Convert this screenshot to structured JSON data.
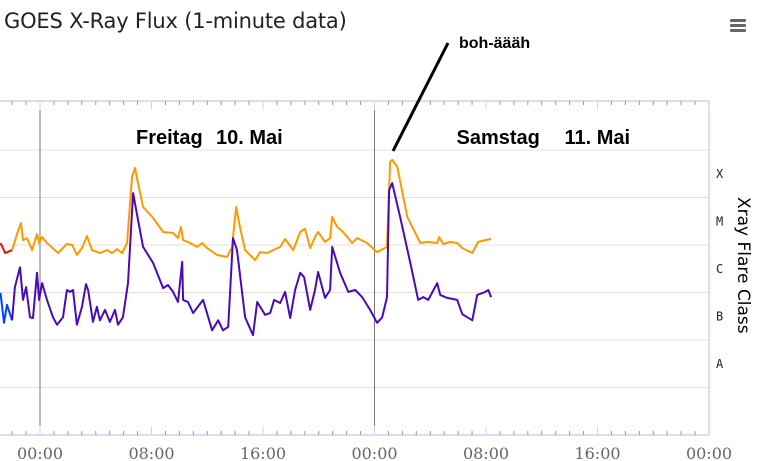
{
  "title": "GOES X-Ray Flux (1-minute data)",
  "menu_icon": "hamburger-icon",
  "chart_data": {
    "type": "line",
    "title": "GOES X-Ray Flux (1-minute data)",
    "xlabel": "",
    "ylabel_right": "Xray Flare Class",
    "y_scale": "log",
    "ylim": [
      1e-09,
      0.01
    ],
    "xlim": [
      "09.05 21:08",
      "12.05 00:00"
    ],
    "grid": true,
    "x_tick_labels": [
      "00:00",
      "08:00",
      "16:00",
      "00:00",
      "08:00",
      "16:00",
      "00:00"
    ],
    "x_ticks": [
      "10.05 00:00",
      "10.05 08:00",
      "10.05 16:00",
      "11.05 00:00",
      "11.05 08:00",
      "11.05 16:00",
      "12.05 00:00"
    ],
    "flare_classes": [
      {
        "label": "X",
        "min": 0.0001
      },
      {
        "label": "M",
        "min": 1e-05
      },
      {
        "label": "C",
        "min": 1e-06
      },
      {
        "label": "B",
        "min": 1e-07
      },
      {
        "label": "A",
        "min": 1e-08
      }
    ],
    "day_labels": [
      {
        "weekday": "Freitag",
        "date": "10. Mai",
        "at": "10.05 00:00"
      },
      {
        "weekday": "Samstag",
        "date": "11. Mai",
        "at": "11.05 00:00"
      }
    ],
    "annotation": {
      "text": "boh-äääh",
      "points_to": "11.05 01:16"
    },
    "series": [
      {
        "color": "#ff0000",
        "points": [
          [
            "09.05 21:10",
            1.1e-05
          ],
          [
            "09.05 21:30",
            6.8e-06
          ],
          [
            "09.05 22:00",
            7.8e-06
          ]
        ]
      },
      {
        "color": "#ff9900",
        "points": [
          [
            "09.05 22:00",
            7.8e-06
          ],
          [
            "09.05 22:21",
            1.7e-05
          ],
          [
            "09.05 22:38",
            2.9e-05
          ],
          [
            "09.05 22:47",
            1.27e-05
          ],
          [
            "09.05 23:04",
            1.4e-05
          ],
          [
            "09.05 23:26",
            7.8e-06
          ],
          [
            "09.05 23:47",
            1.7e-05
          ],
          [
            "09.05 23:56",
            1.1e-05
          ],
          [
            "10.05 00:09",
            1.47e-05
          ],
          [
            "10.05 00:30",
            1.1e-05
          ],
          [
            "10.05 01:18",
            6.8e-06
          ],
          [
            "10.05 01:56",
            1.05e-05
          ],
          [
            "10.05 02:18",
            1e-05
          ],
          [
            "10.05 02:39",
            6.2e-06
          ],
          [
            "10.05 03:01",
            8.6e-06
          ],
          [
            "10.05 03:22",
            1.55e-05
          ],
          [
            "10.05 03:44",
            7.8e-06
          ],
          [
            "10.05 04:18",
            6.8e-06
          ],
          [
            "10.05 04:49",
            7.8e-06
          ],
          [
            "10.05 05:10",
            6.8e-06
          ],
          [
            "10.05 05:32",
            8.2e-06
          ],
          [
            "10.05 05:53",
            6.8e-06
          ],
          [
            "10.05 06:15",
            1.1e-05
          ],
          [
            "10.05 06:36",
            0.00027
          ],
          [
            "10.05 06:49",
            0.00042
          ],
          [
            "10.05 07:02",
            0.0002
          ],
          [
            "10.05 07:24",
            6.3e-05
          ],
          [
            "10.05 08:07",
            3.7e-05
          ],
          [
            "10.05 08:50",
            1.88e-05
          ],
          [
            "10.05 09:33",
            1.79e-05
          ],
          [
            "10.05 09:54",
            1.4e-05
          ],
          [
            "10.05 10:07",
            2.4e-05
          ],
          [
            "10.05 10:16",
            1.27e-05
          ],
          [
            "10.05 10:46",
            1.1e-05
          ],
          [
            "10.05 11:16",
            9.1e-06
          ],
          [
            "10.05 11:38",
            1.1e-05
          ],
          [
            "10.05 11:59",
            8.6e-06
          ],
          [
            "10.05 12:42",
            6.2e-06
          ],
          [
            "10.05 13:25",
            5.6e-06
          ],
          [
            "10.05 13:47",
            9.1e-06
          ],
          [
            "10.05 14:04",
            6.3e-05
          ],
          [
            "10.05 14:17",
            2.9e-05
          ],
          [
            "10.05 14:43",
            7.8e-06
          ],
          [
            "10.05 15:26",
            4.8e-06
          ],
          [
            "10.05 15:48",
            7.1e-06
          ],
          [
            "10.05 16:18",
            6.8e-06
          ],
          [
            "10.05 16:44",
            7.8e-06
          ],
          [
            "10.05 17:14",
            9.1e-06
          ],
          [
            "10.05 17:35",
            1.34e-05
          ],
          [
            "10.05 18:10",
            7.8e-06
          ],
          [
            "10.05 18:40",
            1.88e-05
          ],
          [
            "10.05 19:01",
            2.2e-05
          ],
          [
            "10.05 19:23",
            8.6e-06
          ],
          [
            "10.05 19:44",
            1.47e-05
          ],
          [
            "10.05 19:57",
            1.88e-05
          ],
          [
            "10.05 20:27",
            1.16e-05
          ],
          [
            "10.05 20:49",
            1.4e-05
          ],
          [
            "10.05 20:58",
            3.9e-05
          ],
          [
            "10.05 21:19",
            2.4e-05
          ],
          [
            "10.05 21:45",
            1.88e-05
          ],
          [
            "10.05 22:24",
            1.1e-05
          ],
          [
            "10.05 22:45",
            1.4e-05
          ],
          [
            "10.05 23:28",
            1.1e-05
          ],
          [
            "11.05 00:11",
            7.1e-06
          ],
          [
            "11.05 00:54",
            9.1e-06
          ],
          [
            "11.05 01:07",
            0.00056
          ],
          [
            "11.05 01:16",
            0.00062
          ],
          [
            "11.05 01:38",
            0.00044
          ],
          [
            "11.05 02:21",
            3.9e-05
          ],
          [
            "11.05 03:17",
            1.1e-05
          ],
          [
            "11.05 03:47",
            1.16e-05
          ],
          [
            "11.05 04:30",
            1.1e-05
          ],
          [
            "11.05 04:38",
            1.47e-05
          ],
          [
            "11.05 04:56",
            1.05e-05
          ],
          [
            "11.05 05:26",
            1.16e-05
          ],
          [
            "11.05 05:56",
            1.1e-05
          ],
          [
            "11.05 06:18",
            8.6e-06
          ],
          [
            "11.05 07:01",
            6.8e-06
          ],
          [
            "11.05 07:26",
            1.16e-05
          ],
          [
            "11.05 07:57",
            1.27e-05
          ],
          [
            "11.05 08:22",
            1.34e-05
          ]
        ]
      },
      {
        "color": "#0044ff",
        "points": [
          [
            "09.05 21:10",
            9.8e-07
          ],
          [
            "09.05 21:25",
            2.3e-07
          ],
          [
            "09.05 21:38",
            5.5e-07
          ],
          [
            "09.05 22:00",
            2.6e-07
          ]
        ]
      },
      {
        "color": "#4b0bb4",
        "points": [
          [
            "09.05 22:00",
            2.6e-07
          ],
          [
            "09.05 22:12",
            1.3e-06
          ],
          [
            "09.05 22:34",
            3.4e-06
          ],
          [
            "09.05 22:47",
            7e-07
          ],
          [
            "09.05 23:00",
            1.3e-06
          ],
          [
            "09.05 23:17",
            3e-07
          ],
          [
            "09.05 23:30",
            2.9e-07
          ],
          [
            "09.05 23:47",
            2.6e-06
          ],
          [
            "09.05 23:56",
            7e-07
          ],
          [
            "10.05 00:09",
            1.58e-06
          ],
          [
            "10.05 00:30",
            7e-07
          ],
          [
            "10.05 00:56",
            3e-07
          ],
          [
            "10.05 01:13",
            2.1e-07
          ],
          [
            "10.05 01:39",
            3e-07
          ],
          [
            "10.05 01:56",
            1.13e-06
          ],
          [
            "10.05 02:09",
            1.03e-06
          ],
          [
            "10.05 02:22",
            1.13e-06
          ],
          [
            "10.05 02:39",
            2.1e-07
          ],
          [
            "10.05 03:01",
            5e-07
          ],
          [
            "10.05 03:18",
            1.5e-06
          ],
          [
            "10.05 03:27",
            1.13e-06
          ],
          [
            "10.05 03:48",
            2.4e-07
          ],
          [
            "10.05 04:05",
            5e-07
          ],
          [
            "10.05 04:18",
            2.6e-07
          ],
          [
            "10.05 04:40",
            4.3e-07
          ],
          [
            "10.05 05:01",
            2.4e-07
          ],
          [
            "10.05 05:23",
            4.3e-07
          ],
          [
            "10.05 05:36",
            2.1e-07
          ],
          [
            "10.05 05:57",
            3e-07
          ],
          [
            "10.05 06:19",
            1.58e-06
          ],
          [
            "10.05 06:41",
            0.000124
          ],
          [
            "10.05 07:02",
            3.4e-05
          ],
          [
            "10.05 07:24",
            9.1e-06
          ],
          [
            "10.05 08:07",
            4.2e-06
          ],
          [
            "10.05 08:50",
            1.24e-06
          ],
          [
            "10.05 09:11",
            1.44e-06
          ],
          [
            "10.05 09:33",
            1.03e-06
          ],
          [
            "10.05 09:54",
            6.3e-07
          ],
          [
            "10.05 10:12",
            4.4e-06
          ],
          [
            "10.05 10:16",
            7e-07
          ],
          [
            "10.05 10:37",
            6.3e-07
          ],
          [
            "10.05 10:59",
            3.7e-07
          ],
          [
            "10.05 11:42",
            7e-07
          ],
          [
            "10.05 12:21",
            1.6e-07
          ],
          [
            "10.05 12:47",
            2.6e-07
          ],
          [
            "10.05 13:08",
            1.6e-07
          ],
          [
            "10.05 13:30",
            1.9e-07
          ],
          [
            "10.05 13:51",
            1.4e-05
          ],
          [
            "10.05 14:08",
            7.8e-06
          ],
          [
            "10.05 14:43",
            3e-07
          ],
          [
            "10.05 15:17",
            1.27e-07
          ],
          [
            "10.05 15:35",
            6.3e-07
          ],
          [
            "10.05 16:09",
            3.4e-07
          ],
          [
            "10.05 16:31",
            3.7e-07
          ],
          [
            "10.05 16:48",
            7e-07
          ],
          [
            "10.05 17:14",
            6e-07
          ],
          [
            "10.05 17:35",
            1.03e-06
          ],
          [
            "10.05 17:57",
            2.9e-07
          ],
          [
            "10.05 18:18",
            1.13e-06
          ],
          [
            "10.05 18:40",
            2.6e-06
          ],
          [
            "10.05 18:57",
            2.1e-06
          ],
          [
            "10.05 19:23",
            4.3e-07
          ],
          [
            "10.05 19:44",
            1.13e-06
          ],
          [
            "10.05 19:57",
            2.7e-06
          ],
          [
            "10.05 20:27",
            7.7e-07
          ],
          [
            "10.05 20:49",
            1.13e-06
          ],
          [
            "10.05 20:58",
            9.1e-06
          ],
          [
            "10.05 21:32",
            2.6e-06
          ],
          [
            "10.05 22:07",
            1.03e-06
          ],
          [
            "10.05 22:37",
            1.13e-06
          ],
          [
            "10.05 23:07",
            8e-07
          ],
          [
            "10.05 23:41",
            4.3e-07
          ],
          [
            "11.05 00:11",
            2.3e-07
          ],
          [
            "11.05 00:33",
            3e-07
          ],
          [
            "11.05 00:54",
            8e-07
          ],
          [
            "11.05 01:03",
            0.000144
          ],
          [
            "11.05 01:16",
            0.0002
          ],
          [
            "11.05 01:50",
            3.9e-05
          ],
          [
            "11.05 02:34",
            4.2e-06
          ],
          [
            "11.05 03:08",
            7e-07
          ],
          [
            "11.05 03:30",
            8e-07
          ],
          [
            "11.05 03:51",
            7e-07
          ],
          [
            "11.05 04:30",
            1.58e-06
          ],
          [
            "11.05 04:43",
            8.9e-07
          ],
          [
            "11.05 05:13",
            7.7e-07
          ],
          [
            "11.05 05:56",
            7e-07
          ],
          [
            "11.05 06:18",
            3.5e-07
          ],
          [
            "11.05 07:01",
            2.6e-07
          ],
          [
            "11.05 07:22",
            8.9e-07
          ],
          [
            "11.05 07:57",
            1.03e-06
          ],
          [
            "11.05 08:10",
            1.13e-06
          ],
          [
            "11.05 08:22",
            8e-07
          ]
        ]
      }
    ]
  }
}
